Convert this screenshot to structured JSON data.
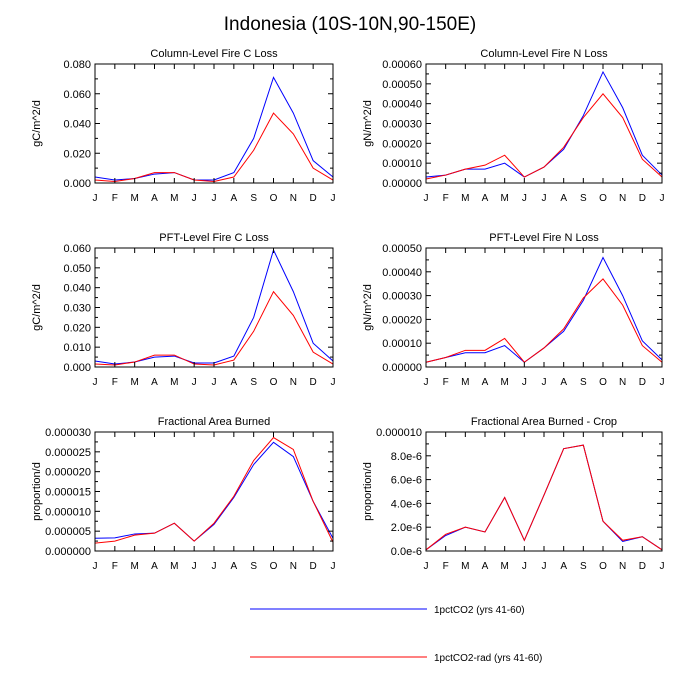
{
  "figure": {
    "title": "Indonesia (10S-10N,90-150E)"
  },
  "legend": {
    "placement": "bottom",
    "entries": [
      {
        "label": "1pctCO2 (yrs 41-60)",
        "color": "#0000ff"
      },
      {
        "label": "1pctCO2-rad (yrs 41-60)",
        "color": "#ff0000"
      }
    ]
  },
  "chart_data": [
    {
      "type": "line",
      "title": "Column-Level Fire C Loss",
      "ylabel": "gC/m^2/d",
      "xlabel": "",
      "categories": [
        "J",
        "F",
        "M",
        "A",
        "M",
        "J",
        "J",
        "A",
        "S",
        "O",
        "N",
        "D",
        "J"
      ],
      "ylim": [
        0,
        0.08
      ],
      "yticks": [
        0,
        0.02,
        0.04,
        0.06,
        0.08
      ],
      "ytick_labels": [
        "0.000",
        "0.020",
        "0.040",
        "0.060",
        "0.080"
      ],
      "grid": false,
      "series": [
        {
          "name": "1pctCO2 (yrs 41-60)",
          "color": "#0000ff",
          "values": [
            0.004,
            0.002,
            0.003,
            0.006,
            0.007,
            0.002,
            0.002,
            0.007,
            0.03,
            0.071,
            0.047,
            0.015,
            0.004
          ]
        },
        {
          "name": "1pctCO2-rad (yrs 41-60)",
          "color": "#ff0000",
          "values": [
            0.002,
            0.001,
            0.003,
            0.007,
            0.007,
            0.002,
            0.001,
            0.004,
            0.022,
            0.047,
            0.033,
            0.01,
            0.002
          ]
        }
      ]
    },
    {
      "type": "line",
      "title": "Column-Level Fire N Loss",
      "ylabel": "gN/m^2/d",
      "xlabel": "",
      "categories": [
        "J",
        "F",
        "M",
        "A",
        "M",
        "J",
        "J",
        "A",
        "S",
        "O",
        "N",
        "D",
        "J"
      ],
      "ylim": [
        0,
        0.0006
      ],
      "yticks": [
        0,
        0.0001,
        0.0002,
        0.0003,
        0.0004,
        0.0005,
        0.0006
      ],
      "ytick_labels": [
        "0.00000",
        "0.00010",
        "0.00020",
        "0.00030",
        "0.00040",
        "0.00050",
        "0.00060"
      ],
      "grid": false,
      "series": [
        {
          "name": "1pctCO2 (yrs 41-60)",
          "color": "#0000ff",
          "values": [
            3e-05,
            4e-05,
            7e-05,
            7e-05,
            0.0001,
            3e-05,
            8e-05,
            0.00017,
            0.00034,
            0.00056,
            0.00038,
            0.00014,
            4e-05
          ]
        },
        {
          "name": "1pctCO2-rad (yrs 41-60)",
          "color": "#ff0000",
          "values": [
            2e-05,
            4e-05,
            7e-05,
            9e-05,
            0.00014,
            3e-05,
            8e-05,
            0.00018,
            0.00033,
            0.00045,
            0.00033,
            0.00012,
            3e-05
          ]
        }
      ]
    },
    {
      "type": "line",
      "title": "PFT-Level Fire C Loss",
      "ylabel": "gC/m^2/d",
      "xlabel": "",
      "categories": [
        "J",
        "F",
        "M",
        "A",
        "M",
        "J",
        "J",
        "A",
        "S",
        "O",
        "N",
        "D",
        "J"
      ],
      "ylim": [
        0,
        0.06
      ],
      "yticks": [
        0,
        0.01,
        0.02,
        0.03,
        0.04,
        0.05,
        0.06
      ],
      "ytick_labels": [
        "0.000",
        "0.010",
        "0.020",
        "0.030",
        "0.040",
        "0.050",
        "0.060"
      ],
      "grid": false,
      "series": [
        {
          "name": "1pctCO2 (yrs 41-60)",
          "color": "#0000ff",
          "values": [
            0.003,
            0.0015,
            0.0025,
            0.005,
            0.0055,
            0.002,
            0.002,
            0.0055,
            0.025,
            0.059,
            0.038,
            0.012,
            0.003
          ]
        },
        {
          "name": "1pctCO2-rad (yrs 41-60)",
          "color": "#ff0000",
          "values": [
            0.0015,
            0.001,
            0.0025,
            0.006,
            0.006,
            0.0015,
            0.001,
            0.0035,
            0.018,
            0.038,
            0.026,
            0.0075,
            0.0015
          ]
        }
      ]
    },
    {
      "type": "line",
      "title": "PFT-Level Fire N Loss",
      "ylabel": "gN/m^2/d",
      "xlabel": "",
      "categories": [
        "J",
        "F",
        "M",
        "A",
        "M",
        "J",
        "J",
        "A",
        "S",
        "O",
        "N",
        "D",
        "J"
      ],
      "ylim": [
        0,
        0.0005
      ],
      "yticks": [
        0,
        0.0001,
        0.0002,
        0.0003,
        0.0004,
        0.0005
      ],
      "ytick_labels": [
        "0.00000",
        "0.00010",
        "0.00020",
        "0.00030",
        "0.00040",
        "0.00050"
      ],
      "grid": false,
      "series": [
        {
          "name": "1pctCO2 (yrs 41-60)",
          "color": "#0000ff",
          "values": [
            2e-05,
            4e-05,
            6e-05,
            6e-05,
            9e-05,
            2e-05,
            8e-05,
            0.00015,
            0.00028,
            0.00046,
            0.0003,
            0.00011,
            3e-05
          ]
        },
        {
          "name": "1pctCO2-rad (yrs 41-60)",
          "color": "#ff0000",
          "values": [
            2e-05,
            4e-05,
            7e-05,
            7e-05,
            0.00012,
            2e-05,
            8e-05,
            0.00016,
            0.00029,
            0.00037,
            0.00026,
            9e-05,
            2e-05
          ]
        }
      ]
    },
    {
      "type": "line",
      "title": "Fractional Area Burned",
      "ylabel": "proportion/d",
      "xlabel": "",
      "categories": [
        "J",
        "F",
        "M",
        "A",
        "M",
        "J",
        "J",
        "A",
        "S",
        "O",
        "N",
        "D",
        "J"
      ],
      "ylim": [
        0,
        3e-05
      ],
      "yticks": [
        0,
        5e-06,
        1e-05,
        1.5e-05,
        2e-05,
        2.5e-05,
        3e-05
      ],
      "ytick_labels": [
        "0.000000",
        "0.000005",
        "0.000010",
        "0.000015",
        "0.000020",
        "0.000025",
        "0.000030"
      ],
      "grid": false,
      "series": [
        {
          "name": "1pctCO2 (yrs 41-60)",
          "color": "#0000ff",
          "values": [
            3.2e-06,
            3.3e-06,
            4.3e-06,
            4.5e-06,
            7e-06,
            2.5e-06,
            6.7e-06,
            1.35e-05,
            2.18e-05,
            2.74e-05,
            2.38e-05,
            1.25e-05,
            3.2e-06
          ]
        },
        {
          "name": "1pctCO2-rad (yrs 41-60)",
          "color": "#ff0000",
          "values": [
            2e-06,
            2.5e-06,
            4e-06,
            4.5e-06,
            7e-06,
            2.5e-06,
            7e-06,
            1.38e-05,
            2.28e-05,
            2.86e-05,
            2.56e-05,
            1.25e-05,
            2.2e-06
          ]
        }
      ]
    },
    {
      "type": "line",
      "title": "Fractional Area Burned - Crop",
      "ylabel": "proportion/d",
      "xlabel": "",
      "categories": [
        "J",
        "F",
        "M",
        "A",
        "M",
        "J",
        "J",
        "A",
        "S",
        "O",
        "N",
        "D",
        "J"
      ],
      "ylim": [
        0,
        1e-05
      ],
      "yticks": [
        0,
        2e-06,
        4e-06,
        6e-06,
        8e-06,
        1e-05
      ],
      "ytick_labels": [
        "0.0e-6",
        "2.0e-6",
        "4.0e-6",
        "6.0e-6",
        "8.0e-6",
        "0.000010"
      ],
      "grid": false,
      "series": [
        {
          "name": "1pctCO2 (yrs 41-60)",
          "color": "#0000ff",
          "values": [
            1e-07,
            1.3e-06,
            2e-06,
            1.6e-06,
            4.5e-06,
            9e-07,
            4.7e-06,
            8.6e-06,
            8.9e-06,
            2.5e-06,
            8e-07,
            1.2e-06,
            1e-07
          ]
        },
        {
          "name": "1pctCO2-rad (yrs 41-60)",
          "color": "#ff0000",
          "values": [
            1e-07,
            1.4e-06,
            2e-06,
            1.6e-06,
            4.5e-06,
            9e-07,
            4.7e-06,
            8.6e-06,
            8.9e-06,
            2.5e-06,
            9e-07,
            1.2e-06,
            1e-07
          ]
        }
      ]
    }
  ]
}
